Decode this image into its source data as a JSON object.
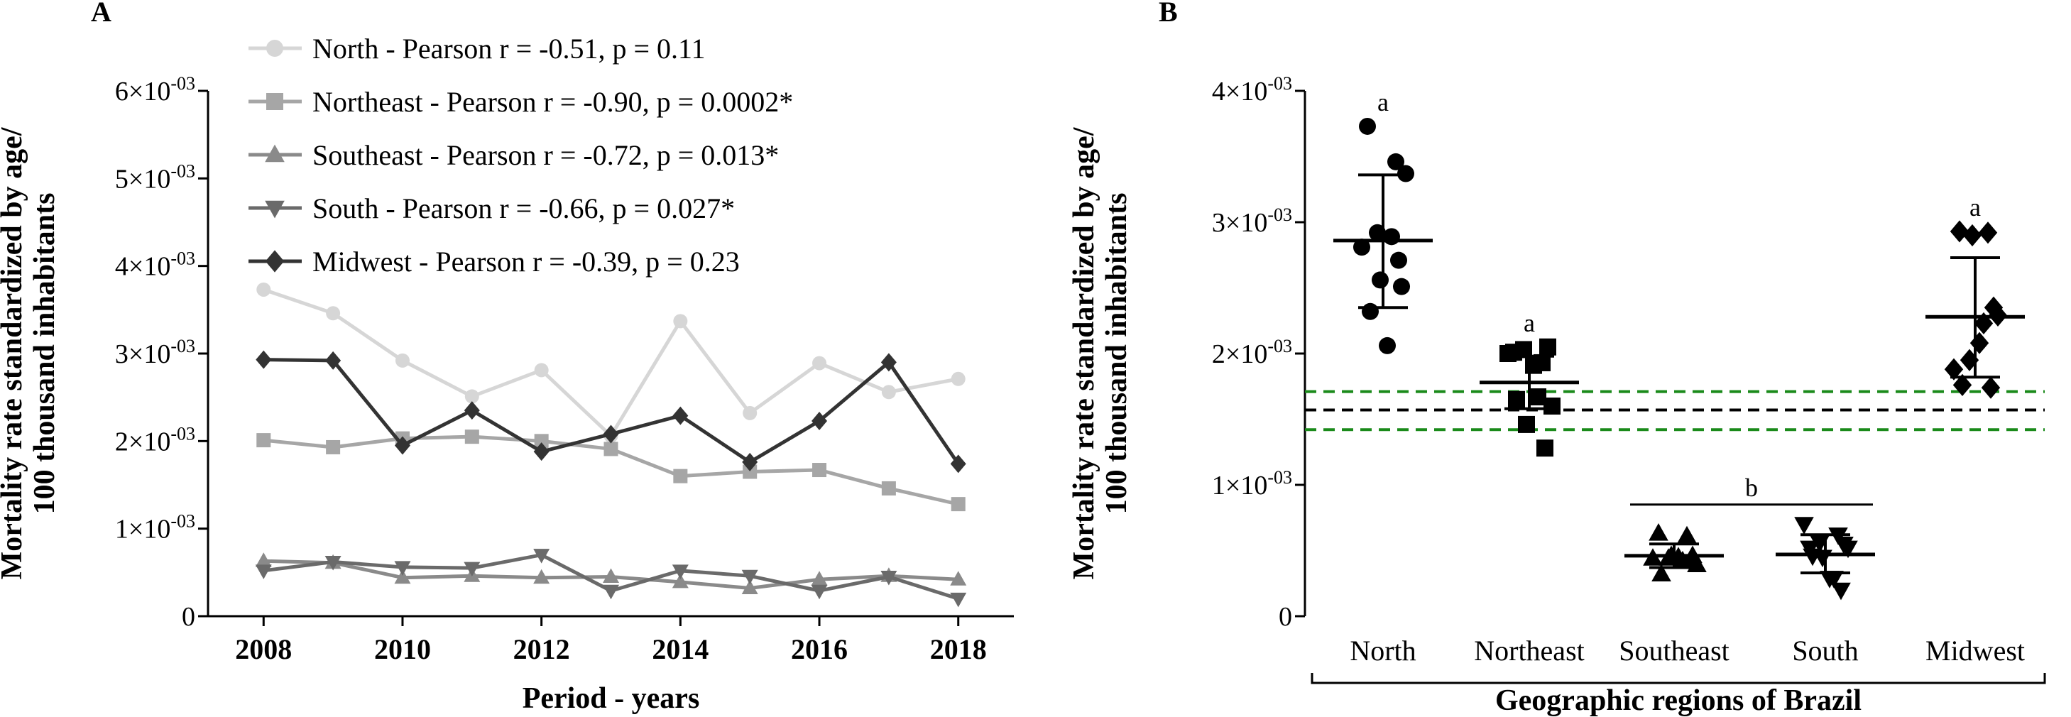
{
  "chart_data": [
    {
      "panel": "A",
      "type": "line",
      "xlabel": "Period - years",
      "ylabel_line1": "Mortality rate standardized by age/",
      "ylabel_line2": "100  thousand inhabitants",
      "x": [
        2008,
        2009,
        2010,
        2011,
        2012,
        2013,
        2014,
        2015,
        2016,
        2017,
        2018
      ],
      "xticks": [
        "2008",
        "2010",
        "2012",
        "2014",
        "2016",
        "2018"
      ],
      "ylim": [
        0,
        0.006
      ],
      "yticks": [
        {
          "base": "0",
          "exp": ""
        },
        {
          "base": "1×10",
          "exp": "-03"
        },
        {
          "base": "2×10",
          "exp": "-03"
        },
        {
          "base": "3×10",
          "exp": "-03"
        },
        {
          "base": "4×10",
          "exp": "-03"
        },
        {
          "base": "5×10",
          "exp": "-03"
        },
        {
          "base": "6×10",
          "exp": "-03"
        }
      ],
      "series": [
        {
          "name": "North - Pearson r = -0.51, p = 0.11",
          "marker": "circle",
          "color": "#d6d6d6",
          "values": [
            0.00373,
            0.00346,
            0.00292,
            0.00251,
            0.00281,
            0.00206,
            0.00337,
            0.00232,
            0.00289,
            0.00256,
            0.00271
          ]
        },
        {
          "name": "Northeast - Pearson r = -0.90, p = 0.0002*",
          "marker": "square",
          "color": "#a6a6a6",
          "values": [
            0.00201,
            0.00193,
            0.00203,
            0.00205,
            0.002,
            0.00191,
            0.0016,
            0.00165,
            0.00167,
            0.00146,
            0.00128
          ]
        },
        {
          "name": "Southeast - Pearson r = -0.72, p = 0.013*",
          "marker": "triangle-up",
          "color": "#8a8a8a",
          "values": [
            0.00063,
            0.00061,
            0.00044,
            0.00046,
            0.00044,
            0.00045,
            0.00039,
            0.00032,
            0.00042,
            0.00046,
            0.00042
          ]
        },
        {
          "name": "South - Pearson r = -0.66, p = 0.027*",
          "marker": "triangle-down",
          "color": "#6a6a6a",
          "values": [
            0.00052,
            0.00062,
            0.00056,
            0.00055,
            0.0007,
            0.00029,
            0.00052,
            0.00046,
            0.00029,
            0.00045,
            0.0002
          ]
        },
        {
          "name": "Midwest - Pearson r = -0.39, p = 0.23",
          "marker": "diamond",
          "color": "#333333",
          "values": [
            0.00293,
            0.00292,
            0.00195,
            0.00235,
            0.00188,
            0.00208,
            0.00229,
            0.00176,
            0.00223,
            0.0029,
            0.00174
          ]
        }
      ]
    },
    {
      "panel": "B",
      "type": "scatter",
      "xlabel": "Geographic regions of Brazil",
      "ylabel_line1": "Mortality rate standardized by age/",
      "ylabel_line2": "100 thousand inhabitants",
      "categories": [
        "North",
        "Northeast",
        "Southeast",
        "South",
        "Midwest"
      ],
      "ylim": [
        0,
        0.004
      ],
      "yticks": [
        {
          "base": "0",
          "exp": ""
        },
        {
          "base": "1×10",
          "exp": "-03"
        },
        {
          "base": "2×10",
          "exp": "-03"
        },
        {
          "base": "3×10",
          "exp": "-03"
        },
        {
          "base": "4×10",
          "exp": "-03"
        }
      ],
      "reference_lines": [
        {
          "value": 0.00157,
          "color": "#000000",
          "style": "dashed"
        },
        {
          "value": 0.00171,
          "color": "#1a8a1a",
          "style": "dashed"
        },
        {
          "value": 0.00142,
          "color": "#1a8a1a",
          "style": "dashed"
        }
      ],
      "groups": [
        {
          "name": "North",
          "marker": "circle",
          "mean": 0.00286,
          "sd_upper": 0.00336,
          "sd_lower": 0.00235,
          "sig": "a",
          "points": [
            0.00373,
            0.00346,
            0.00292,
            0.00251,
            0.00281,
            0.00206,
            0.00337,
            0.00232,
            0.00289,
            0.00256,
            0.00271
          ]
        },
        {
          "name": "Northeast",
          "marker": "square",
          "mean": 0.00178,
          "sd_upper": 0.00198,
          "sd_lower": 0.00158,
          "sig": "a",
          "points": [
            0.00201,
            0.00193,
            0.00203,
            0.00205,
            0.002,
            0.00191,
            0.0016,
            0.00165,
            0.00167,
            0.00146,
            0.00128
          ]
        },
        {
          "name": "Southeast",
          "marker": "triangle-up",
          "mean": 0.00046,
          "sd_upper": 0.00055,
          "sd_lower": 0.00037,
          "points": [
            0.00063,
            0.00061,
            0.00044,
            0.00046,
            0.00044,
            0.00045,
            0.00039,
            0.00032,
            0.00042,
            0.00046,
            0.00042
          ]
        },
        {
          "name": "South",
          "marker": "triangle-down",
          "mean": 0.00047,
          "sd_upper": 0.00062,
          "sd_lower": 0.00033,
          "points": [
            0.00052,
            0.00062,
            0.00056,
            0.00055,
            0.0007,
            0.00029,
            0.00052,
            0.00046,
            0.00029,
            0.00045,
            0.0002
          ]
        },
        {
          "name": "Midwest",
          "marker": "diamond",
          "mean": 0.00228,
          "sd_upper": 0.00273,
          "sd_lower": 0.00182,
          "sig": "a",
          "points": [
            0.00293,
            0.00292,
            0.00195,
            0.00235,
            0.00188,
            0.00208,
            0.00229,
            0.00176,
            0.00223,
            0.0029,
            0.00174
          ]
        }
      ],
      "bracket_label": "b",
      "bracket_groups": [
        "Southeast",
        "South"
      ]
    }
  ]
}
